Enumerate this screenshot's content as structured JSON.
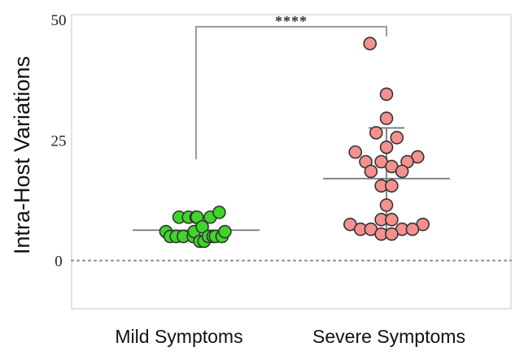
{
  "chart_data": {
    "type": "scatter",
    "ylabel": "Intra-Host Variations",
    "ylim": [
      -10,
      51
    ],
    "yticks": [
      0,
      25,
      50
    ],
    "categories": [
      "Mild Symptoms",
      "Severe Symptoms"
    ],
    "series": [
      {
        "category": "Mild Symptoms",
        "color": "#3fd62a",
        "points": [
          {
            "offset": -0.64,
            "y": 6
          },
          {
            "offset": -0.55,
            "y": 5
          },
          {
            "offset": -0.42,
            "y": 5
          },
          {
            "offset": -0.36,
            "y": 9
          },
          {
            "offset": -0.27,
            "y": 5
          },
          {
            "offset": -0.16,
            "y": 9
          },
          {
            "offset": -0.06,
            "y": 5
          },
          {
            "offset": -0.04,
            "y": 6
          },
          {
            "offset": 0.0,
            "y": 9
          },
          {
            "offset": 0.08,
            "y": 4
          },
          {
            "offset": 0.02,
            "y": 9
          },
          {
            "offset": 0.17,
            "y": 4
          },
          {
            "offset": 0.13,
            "y": 7
          },
          {
            "offset": 0.26,
            "y": 5
          },
          {
            "offset": 0.36,
            "y": 5
          },
          {
            "offset": 0.3,
            "y": 9
          },
          {
            "offset": 0.41,
            "y": 5
          },
          {
            "offset": 0.55,
            "y": 5
          },
          {
            "offset": 0.49,
            "y": 10
          },
          {
            "offset": 0.61,
            "y": 6
          }
        ],
        "mean": 6.3,
        "sd_low": 4.5,
        "sd_high": 8.2
      },
      {
        "category": "Severe Symptoms",
        "color": "#f4908e",
        "points": [
          {
            "offset": -0.35,
            "y": 45
          },
          {
            "offset": 0.0,
            "y": 34.5
          },
          {
            "offset": 0.0,
            "y": 29.5
          },
          {
            "offset": -0.22,
            "y": 26.5
          },
          {
            "offset": 0.22,
            "y": 25.5
          },
          {
            "offset": 0.0,
            "y": 23.5
          },
          {
            "offset": -0.66,
            "y": 22.5
          },
          {
            "offset": 0.66,
            "y": 21.5
          },
          {
            "offset": -0.44,
            "y": 20.5
          },
          {
            "offset": -0.11,
            "y": 20.5
          },
          {
            "offset": 0.44,
            "y": 20.5
          },
          {
            "offset": 0.11,
            "y": 19.5
          },
          {
            "offset": -0.33,
            "y": 18.5
          },
          {
            "offset": 0.33,
            "y": 18.5
          },
          {
            "offset": -0.11,
            "y": 15.5
          },
          {
            "offset": 0.11,
            "y": 15.5
          },
          {
            "offset": 0.0,
            "y": 11.5
          },
          {
            "offset": -0.11,
            "y": 8.5
          },
          {
            "offset": 0.11,
            "y": 8.5
          },
          {
            "offset": -0.77,
            "y": 7.5
          },
          {
            "offset": 0.77,
            "y": 7.5
          },
          {
            "offset": -0.55,
            "y": 6.5
          },
          {
            "offset": -0.33,
            "y": 6.5
          },
          {
            "offset": 0.33,
            "y": 6.5
          },
          {
            "offset": 0.55,
            "y": 6.5
          },
          {
            "offset": -0.11,
            "y": 5.5
          },
          {
            "offset": 0.11,
            "y": 5.5
          }
        ],
        "mean": 17,
        "sd_low": 5.5,
        "sd_high": 27.5
      }
    ],
    "significance": {
      "label": "****",
      "between": [
        "Mild Symptoms",
        "Severe Symptoms"
      ]
    },
    "reference_line_y": 0,
    "colors": {
      "axis": "#d9d9d9",
      "bracket": "#9a9a9a",
      "zero_line": "#888888",
      "mean_line": "#777777",
      "marker_edge": "#333333"
    }
  }
}
